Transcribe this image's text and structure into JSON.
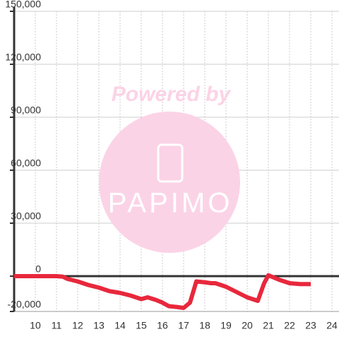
{
  "chart_data": {
    "type": "line",
    "watermark": {
      "top": "Powered by",
      "logo": "PAPIMO"
    },
    "x": [
      9,
      11,
      11.3,
      11.5,
      12,
      12.5,
      13,
      13.5,
      14,
      14.5,
      15,
      15.3,
      15.7,
      16,
      16.3,
      16.7,
      17,
      17.3,
      17.6,
      18,
      18.3,
      18.5,
      19,
      19.5,
      20,
      20.5,
      20.8,
      21,
      21.5,
      22,
      22.5,
      23
    ],
    "series": [
      {
        "color": "#e8283c",
        "values": [
          0,
          0,
          -300,
          -1500,
          -3000,
          -5000,
          -6500,
          -8500,
          -9500,
          -11000,
          -13000,
          -12000,
          -13500,
          -15000,
          -17000,
          -17500,
          -18000,
          -15000,
          -3000,
          -3500,
          -4000,
          -4000,
          -6000,
          -9000,
          -12000,
          -14000,
          -4000,
          500,
          -2000,
          -4000,
          -4500,
          -4500
        ]
      }
    ],
    "xlim": [
      9,
      24.4
    ],
    "xticks": [
      10,
      11,
      12,
      13,
      14,
      15,
      16,
      17,
      18,
      19,
      20,
      21,
      22,
      23,
      24
    ],
    "ylim": [
      -20000,
      150000
    ],
    "yticks": [
      {
        "value": -20000,
        "label": "-20,000"
      },
      0,
      {
        "value": 30000,
        "label": "30,000"
      },
      {
        "value": 60000,
        "label": "60,000"
      },
      {
        "value": 90000,
        "label": "90,000"
      },
      {
        "value": 120000,
        "label": "120,000"
      },
      {
        "value": 150000,
        "label": "150,000"
      }
    ],
    "grid": true
  }
}
